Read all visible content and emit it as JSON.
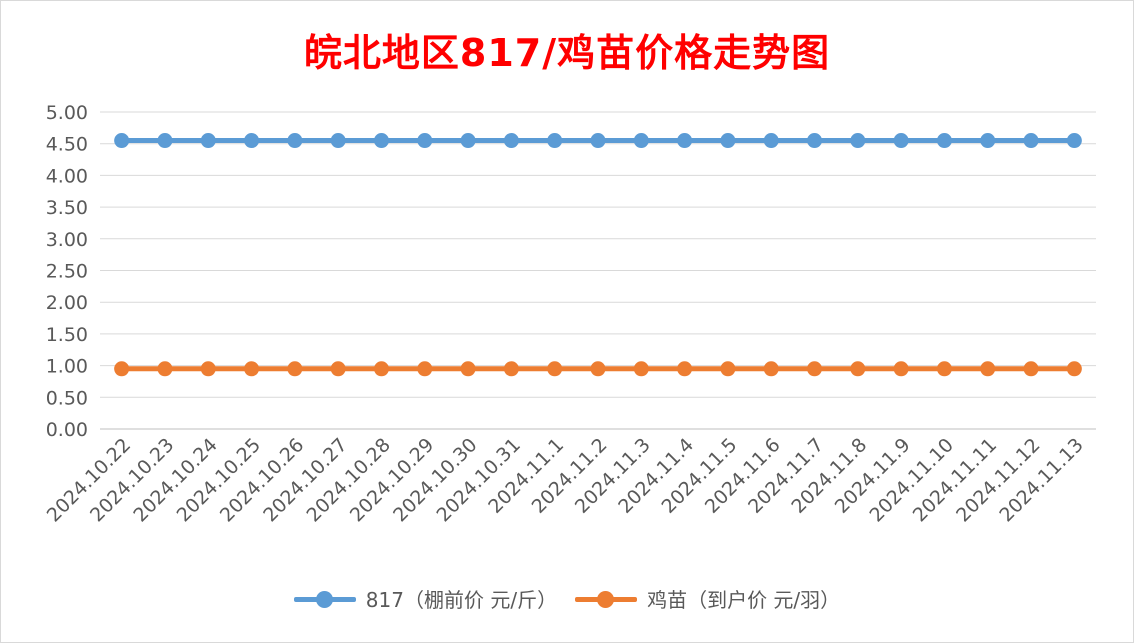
{
  "chart_data": {
    "type": "line",
    "title": "皖北地区817/鸡苗价格走势图",
    "x": [
      "2024.10.22",
      "2024.10.23",
      "2024.10.24",
      "2024.10.25",
      "2024.10.26",
      "2024.10.27",
      "2024.10.28",
      "2024.10.29",
      "2024.10.30",
      "2024.10.31",
      "2024.11.1",
      "2024.11.2",
      "2024.11.3",
      "2024.11.4",
      "2024.11.5",
      "2024.11.6",
      "2024.11.7",
      "2024.11.8",
      "2024.11.9",
      "2024.11.10",
      "2024.11.11",
      "2024.11.12",
      "2024.11.13"
    ],
    "series": [
      {
        "name": "817（棚前价 元/斤）",
        "color": "#5b9bd5",
        "values": [
          4.55,
          4.55,
          4.55,
          4.55,
          4.55,
          4.55,
          4.55,
          4.55,
          4.55,
          4.55,
          4.55,
          4.55,
          4.55,
          4.55,
          4.55,
          4.55,
          4.55,
          4.55,
          4.55,
          4.55,
          4.55,
          4.55,
          4.55
        ]
      },
      {
        "name": "鸡苗（到户价 元/羽）",
        "color": "#ed7d31",
        "values": [
          0.95,
          0.95,
          0.95,
          0.95,
          0.95,
          0.95,
          0.95,
          0.95,
          0.95,
          0.95,
          0.95,
          0.95,
          0.95,
          0.95,
          0.95,
          0.95,
          0.95,
          0.95,
          0.95,
          0.95,
          0.95,
          0.95,
          0.95
        ]
      }
    ],
    "y_ticks": [
      "0.00",
      "0.50",
      "1.00",
      "1.50",
      "2.00",
      "2.50",
      "3.00",
      "3.50",
      "4.00",
      "4.50",
      "5.00"
    ],
    "ylim": [
      0,
      5
    ],
    "grid": true,
    "legend_position": "bottom"
  }
}
